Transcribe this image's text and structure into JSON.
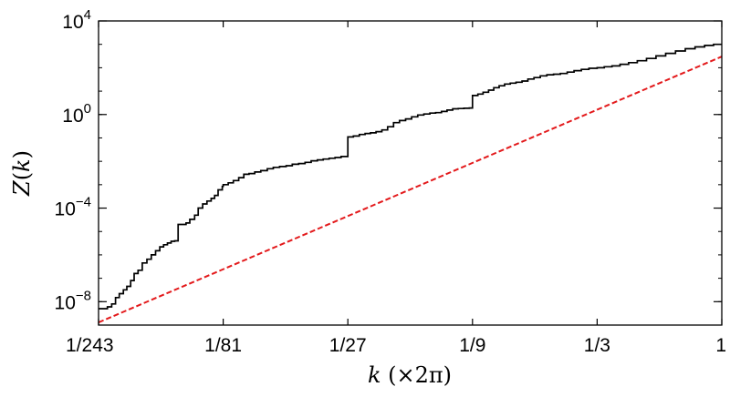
{
  "chart_data": {
    "type": "line",
    "xlabel": {
      "var": "k",
      "suffix": " (×2π)"
    },
    "ylabel": {
      "func": "Z",
      "open": "(",
      "var": "k",
      "close": ")"
    },
    "x_scale": "log3",
    "y_scale": "log10",
    "xlim": [
      0.004115,
      1
    ],
    "ylim": [
      1e-09,
      10000
    ],
    "x_ticks": [
      {
        "value": 0.004115,
        "label": "1/243"
      },
      {
        "value": 0.012346,
        "label": "1/81"
      },
      {
        "value": 0.037037,
        "label": "1/27"
      },
      {
        "value": 0.111111,
        "label": "1/9"
      },
      {
        "value": 0.333333,
        "label": "1/3"
      },
      {
        "value": 1,
        "label": "1"
      }
    ],
    "y_ticks": [
      {
        "value": 1e-08,
        "base": "10",
        "exp": "−8"
      },
      {
        "value": 0.0001,
        "base": "10",
        "exp": "−4"
      },
      {
        "value": 1,
        "base": "10",
        "exp": "0"
      },
      {
        "value": 10000,
        "base": "10",
        "exp": "4"
      }
    ],
    "grid": false,
    "series": [
      {
        "style": "step",
        "color": "#000000",
        "dash": "solid",
        "x": [
          0.004115,
          0.00428,
          0.00445,
          0.00462,
          0.00478,
          0.00494,
          0.00512,
          0.00528,
          0.00546,
          0.00563,
          0.00583,
          0.00605,
          0.0063,
          0.00655,
          0.0068,
          0.00706,
          0.0073,
          0.00755,
          0.0078,
          0.00805,
          0.0083,
          0.0086,
          0.0089,
          0.0092,
          0.0096,
          0.0099,
          0.0103,
          0.0107,
          0.0111,
          0.01145,
          0.0118,
          0.01225,
          0.01235,
          0.0129,
          0.0135,
          0.01415,
          0.0148,
          0.0155,
          0.0163,
          0.0172,
          0.0182,
          0.0192,
          0.0203,
          0.0215,
          0.0227,
          0.024,
          0.0254,
          0.0268,
          0.0283,
          0.0298,
          0.0314,
          0.0331,
          0.0349,
          0.037,
          0.037037,
          0.0389,
          0.041,
          0.0431,
          0.0452,
          0.0475,
          0.05,
          0.0526,
          0.0554,
          0.0584,
          0.0616,
          0.065,
          0.0686,
          0.0724,
          0.0763,
          0.0803,
          0.0845,
          0.0888,
          0.0933,
          0.098,
          0.103,
          0.108,
          0.1111,
          0.1165,
          0.122,
          0.128,
          0.134,
          0.1405,
          0.1475,
          0.155,
          0.163,
          0.172,
          0.181,
          0.191,
          0.202,
          0.214,
          0.227,
          0.241,
          0.256,
          0.272,
          0.29,
          0.31,
          0.3333,
          0.355,
          0.38,
          0.408,
          0.44,
          0.475,
          0.515,
          0.56,
          0.61,
          0.665,
          0.725,
          0.79,
          0.86,
          0.93,
          1
        ],
        "y": [
          5e-09,
          5e-09,
          6e-09,
          8e-09,
          1.5e-08,
          2.2e-08,
          3.2e-08,
          4.5e-08,
          8e-08,
          1.6e-07,
          2.2e-07,
          4.5e-07,
          6.5e-07,
          1e-06,
          1.5e-06,
          2.2e-06,
          2.7e-06,
          3.2e-06,
          3.8e-06,
          4e-06,
          2e-05,
          2e-05,
          2.3e-05,
          3.3e-05,
          5e-05,
          0.0001,
          0.00015,
          0.0002,
          0.00026,
          0.00035,
          0.0006,
          0.00085,
          0.001,
          0.0012,
          0.0015,
          0.002,
          0.0028,
          0.003,
          0.0035,
          0.004,
          0.0048,
          0.0055,
          0.006,
          0.0065,
          0.0075,
          0.008,
          0.009,
          0.0105,
          0.0115,
          0.0125,
          0.0135,
          0.0145,
          0.016,
          0.016,
          0.11,
          0.12,
          0.14,
          0.155,
          0.165,
          0.185,
          0.22,
          0.3,
          0.45,
          0.55,
          0.65,
          0.8,
          0.95,
          1.05,
          1.15,
          1.2,
          1.35,
          1.55,
          1.75,
          1.8,
          1.85,
          1.9,
          6.5,
          7.5,
          9,
          11,
          14,
          17,
          20,
          22,
          24,
          27,
          33,
          38,
          45,
          50,
          53,
          57,
          65,
          75,
          85,
          95,
          100,
          110,
          120,
          140,
          165,
          200,
          250,
          320,
          410,
          520,
          650,
          780,
          900,
          1000,
          1000
        ]
      },
      {
        "style": "line",
        "color": "#e31a1c",
        "dash": "dashed",
        "x": [
          0.004115,
          1
        ],
        "y": [
          1.3e-09,
          300
        ]
      }
    ]
  }
}
